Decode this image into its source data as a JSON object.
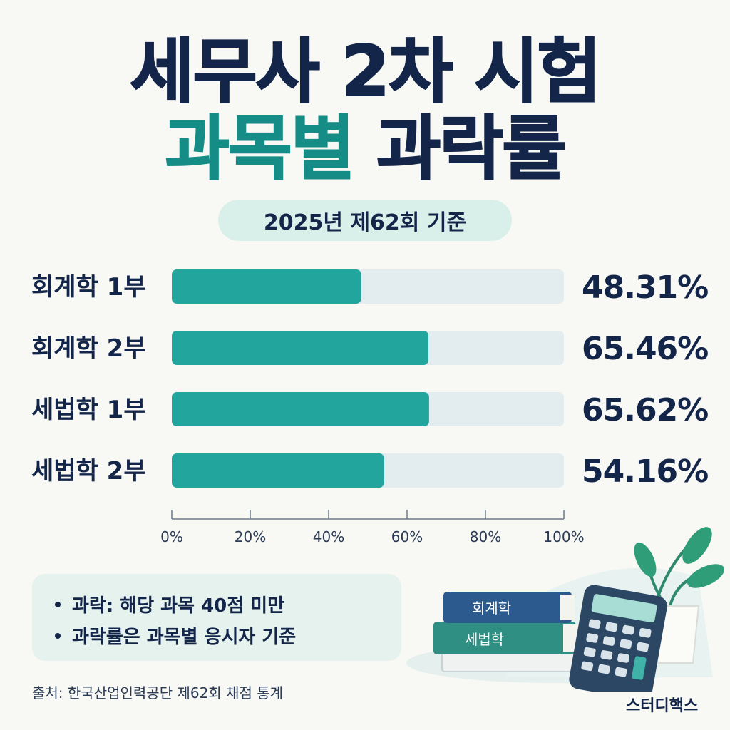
{
  "title": {
    "line1": "세무사 2차 시험",
    "line2_part1": "과목별",
    "line2_part2": "과락률"
  },
  "subtitle": "2025년 제62회 기준",
  "chart_data": {
    "type": "bar",
    "orientation": "horizontal",
    "categories": [
      "회계학 1부",
      "회계학 2부",
      "세법학 1부",
      "세법학 2부"
    ],
    "values": [
      48.31,
      65.46,
      65.62,
      54.16
    ],
    "value_labels": [
      "48.31%",
      "65.46%",
      "65.62%",
      "54.16%"
    ],
    "xlim": [
      0,
      100
    ],
    "ticks": [
      0,
      20,
      40,
      60,
      80,
      100
    ],
    "tick_labels": [
      "0%",
      "20%",
      "40%",
      "60%",
      "80%",
      "100%"
    ],
    "grid": false
  },
  "notes": [
    "과락: 해당 과목 40점 미만",
    "과락률은 과목별 응시자 기준"
  ],
  "source": "출처: 한국산업인력공단 제62회 채점 통계",
  "brand": "스터디핵스",
  "illustration": {
    "book_top_label": "회계학",
    "book_bottom_label": "세법학"
  },
  "colors": {
    "navy": "#14254a",
    "teal": "#22a59c",
    "track": "#e3ecee",
    "background": "#f8f9f4",
    "pill": "#d8efea"
  }
}
